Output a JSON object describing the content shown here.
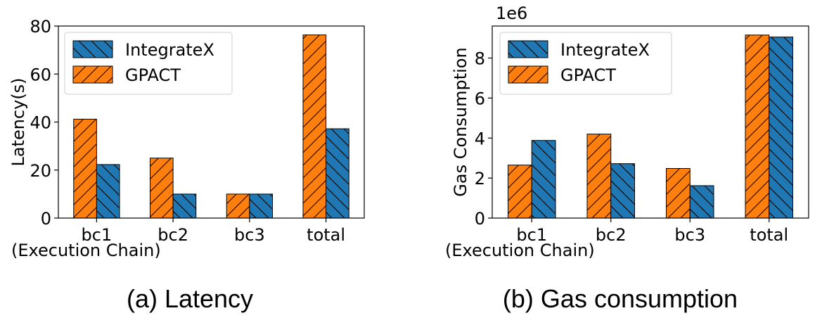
{
  "chart_data": [
    {
      "type": "bar",
      "caption": "(a) Latency",
      "categories": [
        "bc1",
        "bc2",
        "bc3",
        "total"
      ],
      "xlabel": "(Execution Chain)",
      "ylabel": "Latency(s)",
      "ylim": [
        0,
        80
      ],
      "yticks": [
        0,
        20,
        40,
        60,
        80
      ],
      "ytick_labels": [
        "0",
        "20",
        "40",
        "60",
        "80"
      ],
      "scale_label": "",
      "legend_position": "upper-left",
      "series": [
        {
          "name": "GPACT",
          "values": [
            41.2,
            25.0,
            10.0,
            76.3
          ],
          "color": "#ff7f0e",
          "hatch": "/"
        },
        {
          "name": "IntegrateX",
          "values": [
            22.3,
            10.0,
            10.0,
            37.2
          ],
          "color": "#1f77b4",
          "hatch": "\\"
        }
      ],
      "legend_order": [
        "IntegrateX",
        "GPACT"
      ]
    },
    {
      "type": "bar",
      "caption": "(b) Gas consumption",
      "categories": [
        "bc1",
        "bc2",
        "bc3",
        "total"
      ],
      "xlabel": "(Execution Chain)",
      "ylabel": "Gas Consumption",
      "ylim": [
        0,
        9.6
      ],
      "yticks": [
        0,
        2,
        4,
        6,
        8
      ],
      "ytick_labels": [
        "0",
        "2",
        "4",
        "6",
        "8"
      ],
      "scale_label": "1e6",
      "legend_position": "upper-left",
      "series": [
        {
          "name": "GPACT",
          "values": [
            2.65,
            4.2,
            2.48,
            9.15
          ],
          "color": "#ff7f0e",
          "hatch": "/"
        },
        {
          "name": "IntegrateX",
          "values": [
            3.88,
            2.72,
            1.62,
            9.05
          ],
          "color": "#1f77b4",
          "hatch": "\\"
        }
      ],
      "legend_order": [
        "IntegrateX",
        "GPACT"
      ]
    }
  ]
}
